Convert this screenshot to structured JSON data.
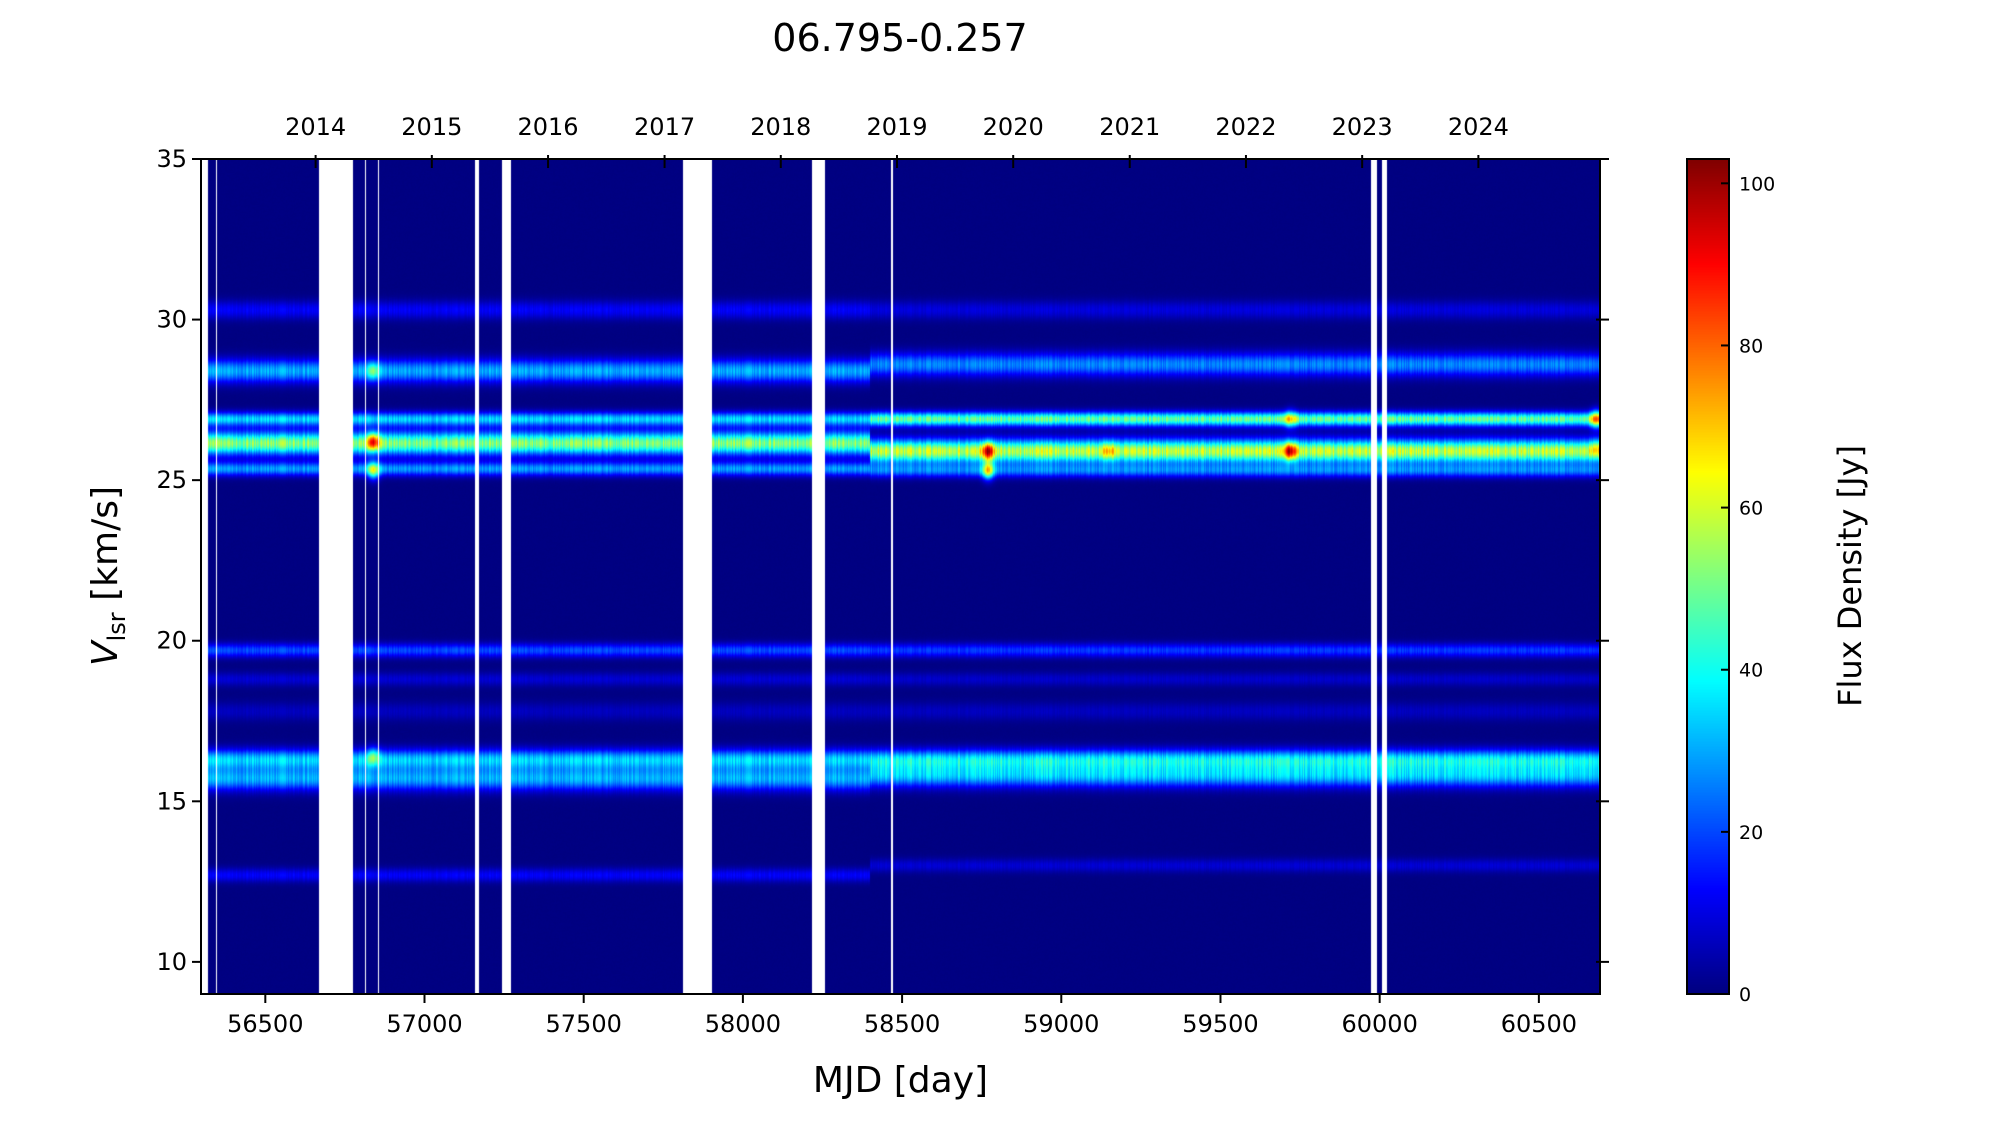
{
  "chart_data": {
    "type": "heatmap",
    "title": "06.795-0.257",
    "xlabel": "MJD [day]",
    "ylabel": {
      "main": "V",
      "sub": "lsr",
      "rest": " [km/s]"
    },
    "colorbar_label": "Flux Density [Jy]",
    "colormap": "jet",
    "xlim": [
      56298,
      60692
    ],
    "ylim": [
      9,
      35
    ],
    "clim": [
      0,
      103
    ],
    "xticks": [
      56500,
      57000,
      57500,
      58000,
      58500,
      59000,
      59500,
      60000,
      60500
    ],
    "yticks": [
      10,
      15,
      20,
      25,
      30,
      35
    ],
    "colorbar_ticks": [
      0,
      20,
      40,
      60,
      80,
      100
    ],
    "top_axis_years": [
      {
        "label": "2014",
        "mjd": 56658
      },
      {
        "label": "2015",
        "mjd": 57023
      },
      {
        "label": "2016",
        "mjd": 57388
      },
      {
        "label": "2017",
        "mjd": 57754
      },
      {
        "label": "2018",
        "mjd": 58119
      },
      {
        "label": "2019",
        "mjd": 58484
      },
      {
        "label": "2020",
        "mjd": 58849
      },
      {
        "label": "2021",
        "mjd": 59215
      },
      {
        "label": "2022",
        "mjd": 59580
      },
      {
        "label": "2023",
        "mjd": 59945
      },
      {
        "label": "2024",
        "mjd": 60310
      }
    ],
    "data_gaps_mjd": [
      [
        56298,
        56320
      ],
      [
        56346,
        56349
      ],
      [
        56668,
        56775
      ],
      [
        56812,
        56815
      ],
      [
        56854,
        56856
      ],
      [
        56931,
        56933
      ],
      [
        56969,
        56971
      ],
      [
        57051,
        57053
      ],
      [
        57158,
        57170
      ],
      [
        57243,
        57272
      ],
      [
        57374,
        57376
      ],
      [
        57456,
        57458
      ],
      [
        57783,
        57785
      ],
      [
        57812,
        57903
      ],
      [
        58217,
        58258
      ],
      [
        58466,
        58470
      ],
      [
        58803,
        58805
      ],
      [
        59564,
        59566
      ],
      [
        59655,
        59656
      ],
      [
        59972,
        59992
      ],
      [
        60008,
        60024
      ]
    ],
    "spectral_features": [
      {
        "velocity_early": 30.3,
        "velocity_late": 30.3,
        "flux_early": 12,
        "flux_late": 9,
        "width": 0.2
      },
      {
        "velocity_early": 28.4,
        "velocity_late": 28.6,
        "flux_early": 30,
        "flux_late": 26,
        "width": 0.25
      },
      {
        "velocity_early": 26.9,
        "velocity_late": 26.9,
        "flux_early": 34,
        "flux_late": 48,
        "width": 0.15
      },
      {
        "velocity_early": 26.15,
        "velocity_late": 25.9,
        "flux_early": 52,
        "flux_late": 58,
        "width": 0.25
      },
      {
        "velocity_early": 25.35,
        "velocity_late": 25.3,
        "flux_early": 28,
        "flux_late": 24,
        "width": 0.15
      },
      {
        "velocity_early": 19.7,
        "velocity_late": 19.7,
        "flux_early": 20,
        "flux_late": 18,
        "width": 0.15
      },
      {
        "velocity_early": 18.8,
        "velocity_late": 18.8,
        "flux_early": 8,
        "flux_late": 7,
        "width": 0.15
      },
      {
        "velocity_early": 17.8,
        "velocity_late": 17.8,
        "flux_early": 6,
        "flux_late": 6,
        "width": 0.2
      },
      {
        "velocity_early": 16.3,
        "velocity_late": 16.3,
        "flux_early": 33,
        "flux_late": 35,
        "width": 0.22
      },
      {
        "velocity_early": 15.7,
        "velocity_late": 15.8,
        "flux_early": 30,
        "flux_late": 32,
        "width": 0.25
      },
      {
        "velocity_early": 12.7,
        "velocity_late": 13.0,
        "flux_early": 12,
        "flux_late": 8,
        "width": 0.15
      }
    ],
    "feature_transition_mjd": 58400,
    "flares": [
      {
        "mjd": 56840,
        "velocity": 26.2,
        "peak_increase": 45
      },
      {
        "mjd": 56840,
        "velocity": 28.4,
        "peak_increase": 25
      },
      {
        "mjd": 56840,
        "velocity": 25.3,
        "peak_increase": 40
      },
      {
        "mjd": 56840,
        "velocity": 16.4,
        "peak_increase": 25
      },
      {
        "mjd": 58770,
        "velocity": 25.9,
        "peak_increase": 42
      },
      {
        "mjd": 58770,
        "velocity": 25.3,
        "peak_increase": 45
      },
      {
        "mjd": 59150,
        "velocity": 25.9,
        "peak_increase": 15
      },
      {
        "mjd": 59720,
        "velocity": 25.9,
        "peak_increase": 42
      },
      {
        "mjd": 59720,
        "velocity": 26.9,
        "peak_increase": 25
      },
      {
        "mjd": 60680,
        "velocity": 26.9,
        "peak_increase": 40
      },
      {
        "mjd": 60680,
        "velocity": 26.0,
        "peak_increase": 18
      }
    ]
  }
}
